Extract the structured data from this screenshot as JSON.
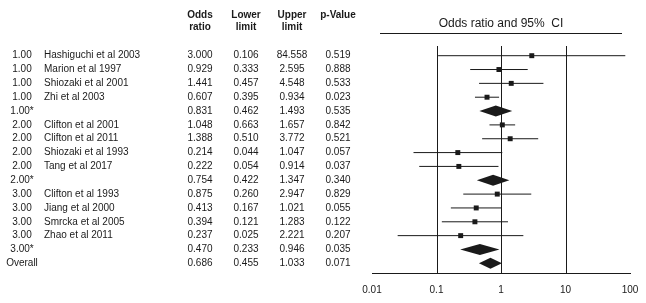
{
  "chart_data": {
    "type": "forest",
    "title": "Odds ratio and 95%  CI",
    "log": "x",
    "xlim": [
      0.01,
      100
    ],
    "xticks": [
      0.01,
      0.1,
      1,
      10,
      100
    ],
    "grid": false,
    "color": "#1a1a1a",
    "reference_lines": [
      0.1,
      1,
      10
    ],
    "column_headers": [
      "Odds\nratio",
      "Lower\nlimit",
      "Upper\nlimit",
      "p-Value"
    ],
    "groups": [
      "1.00",
      "1.00",
      "1.00",
      "1.00",
      "1.00*",
      "2.00",
      "2.00",
      "2.00",
      "2.00",
      "2.00*",
      "3.00",
      "3.00",
      "3.00",
      "3.00",
      "3.00*",
      "Overall"
    ],
    "categories": [
      "Hashiguchi et al 2003",
      "Marion et al 1997",
      "Shiozaki et al 2001",
      "Zhi et al 2003",
      null,
      "Clifton et al 2001",
      "Clifton et al 2011",
      "Shiozaki et al 1993",
      "Tang et al 2017",
      null,
      "Clifton et al 1993",
      "Jiang et al 2000",
      "Smrcka et al 2005",
      "Zhao et al 2011",
      null,
      null
    ],
    "marker": [
      "square",
      "square",
      "square",
      "square",
      "diamond",
      "square",
      "square",
      "square",
      "square",
      "diamond",
      "square",
      "square",
      "square",
      "square",
      "diamond",
      "diamond"
    ],
    "values": [
      3.0,
      0.929,
      1.441,
      0.607,
      0.831,
      1.048,
      1.388,
      0.214,
      0.222,
      0.754,
      0.875,
      0.413,
      0.394,
      0.237,
      0.47,
      0.686
    ],
    "value_labels": [
      "3.000",
      "0.929",
      "1.441",
      "0.607",
      "0.831",
      "1.048",
      "1.388",
      "0.214",
      "0.222",
      "0.754",
      "0.875",
      "0.413",
      "0.394",
      "0.237",
      "0.470",
      "0.686"
    ],
    "lower": [
      0.106,
      0.333,
      0.457,
      0.395,
      0.462,
      0.663,
      0.51,
      0.044,
      0.054,
      0.422,
      0.26,
      0.167,
      0.121,
      0.025,
      0.233,
      0.455
    ],
    "lower_labels": [
      "0.106",
      "0.333",
      "0.457",
      "0.395",
      "0.462",
      "0.663",
      "0.510",
      "0.044",
      "0.054",
      "0.422",
      "0.260",
      "0.167",
      "0.121",
      "0.025",
      "0.233",
      "0.455"
    ],
    "upper": [
      84.558,
      2.595,
      4.548,
      0.934,
      1.493,
      1.657,
      3.772,
      1.047,
      0.914,
      1.347,
      2.947,
      1.021,
      1.283,
      2.221,
      0.946,
      1.033
    ],
    "upper_labels": [
      "84.558",
      "2.595",
      "4.548",
      "0.934",
      "1.493",
      "1.657",
      "3.772",
      "1.047",
      "0.914",
      "1.347",
      "2.947",
      "1.021",
      "1.283",
      "2.221",
      "0.946",
      "1.033"
    ],
    "pvalues": [
      0.519,
      0.888,
      0.533,
      0.023,
      0.535,
      0.842,
      0.521,
      0.057,
      0.037,
      0.34,
      0.829,
      0.055,
      0.122,
      0.207,
      0.035,
      0.071
    ],
    "pvalue_labels": [
      "0.519",
      "0.888",
      "0.533",
      "0.023",
      "0.535",
      "0.842",
      "0.521",
      "0.057",
      "0.037",
      "0.340",
      "0.829",
      "0.055",
      "0.122",
      "0.207",
      "0.035",
      "0.071"
    ]
  }
}
